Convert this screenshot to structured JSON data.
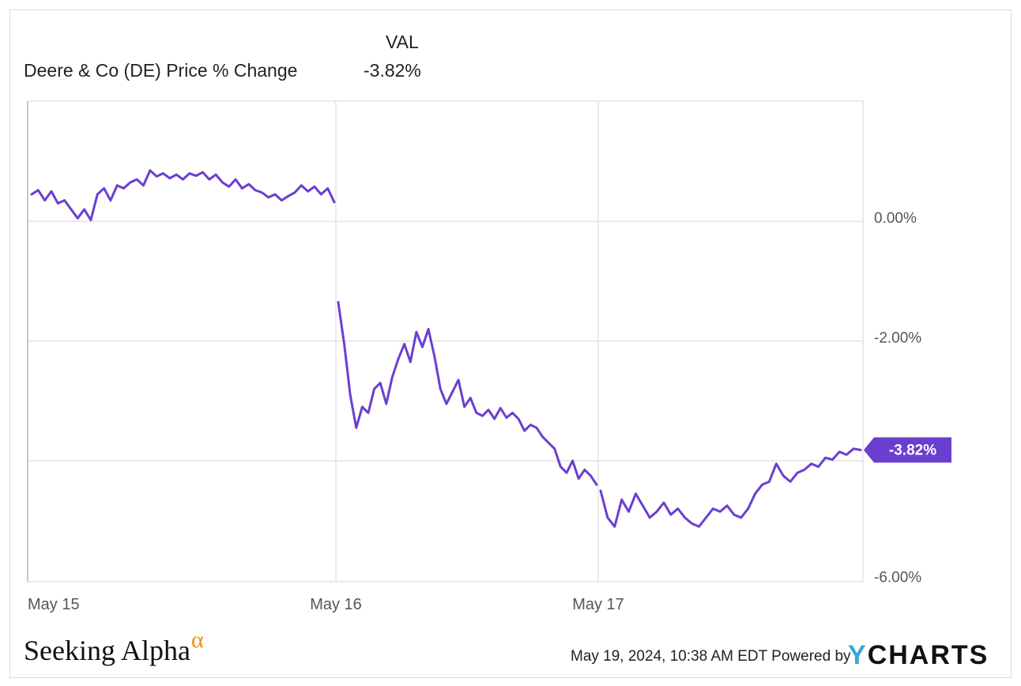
{
  "legend": {
    "header": "VAL",
    "series_name": "Deere & Co (DE) Price % Change",
    "series_value": "-3.82%"
  },
  "footer": {
    "brand": "Seeking Alpha",
    "brand_mark": "α",
    "date": "May 19, 2024, 10:38 AM EDT Powered by",
    "logo_y": "Y",
    "logo_rest": "CHARTS"
  },
  "colors": {
    "line": "#6a3fd0",
    "badge": "#6a3fd0",
    "grid": "#e3e3e3",
    "axis_text": "#555555",
    "alpha_mark": "#f39200",
    "ycharts_y": "#3aa6dd"
  },
  "chart_data": {
    "type": "line",
    "title": "",
    "xlabel": "",
    "ylabel": "",
    "y_axis_side": "right",
    "ylim": [
      -6.2,
      2.0
    ],
    "y_ticks": [
      0,
      -2,
      -4,
      -6
    ],
    "y_tick_labels": [
      "0.00%",
      "-2.00%",
      "",
      "-6.00%"
    ],
    "grid": true,
    "x_ticks": [
      "May 15",
      "May 16",
      "May 17"
    ],
    "last_value_label": "-3.82%",
    "series": [
      {
        "name": "Deere & Co (DE) Price % Change",
        "segments": [
          {
            "day": "May 15",
            "values": [
              0.45,
              0.52,
              0.35,
              0.5,
              0.3,
              0.35,
              0.2,
              0.05,
              0.2,
              0.02,
              0.45,
              0.55,
              0.35,
              0.6,
              0.55,
              0.65,
              0.7,
              0.6,
              0.85,
              0.75,
              0.8,
              0.72,
              0.78,
              0.7,
              0.8,
              0.76,
              0.82,
              0.7,
              0.78,
              0.65,
              0.58,
              0.7,
              0.55,
              0.62,
              0.52,
              0.48,
              0.4,
              0.45,
              0.35,
              0.42,
              0.48,
              0.6,
              0.5,
              0.58,
              0.45,
              0.55,
              0.32
            ]
          },
          {
            "day": "May 16",
            "values": [
              -1.35,
              -2.05,
              -2.9,
              -3.45,
              -3.1,
              -3.2,
              -2.8,
              -2.7,
              -3.05,
              -2.6,
              -2.3,
              -2.05,
              -2.35,
              -1.85,
              -2.1,
              -1.8,
              -2.25,
              -2.8,
              -3.05,
              -2.85,
              -2.65,
              -3.1,
              -2.95,
              -3.2,
              -3.25,
              -3.15,
              -3.3,
              -3.12,
              -3.28,
              -3.2,
              -3.3,
              -3.5,
              -3.4,
              -3.45,
              -3.6,
              -3.7,
              -3.8,
              -4.1,
              -4.2,
              -4.0,
              -4.3,
              -4.15,
              -4.25,
              -4.4
            ]
          },
          {
            "day": "May 17",
            "values": [
              -4.5,
              -4.95,
              -5.1,
              -4.65,
              -4.85,
              -4.55,
              -4.75,
              -4.95,
              -4.85,
              -4.7,
              -4.9,
              -4.8,
              -4.95,
              -5.05,
              -5.1,
              -4.95,
              -4.8,
              -4.85,
              -4.75,
              -4.9,
              -4.95,
              -4.8,
              -4.55,
              -4.4,
              -4.35,
              -4.05,
              -4.25,
              -4.35,
              -4.2,
              -4.15,
              -4.05,
              -4.1,
              -3.95,
              -3.98,
              -3.85,
              -3.9,
              -3.8,
              -3.82
            ]
          }
        ]
      }
    ]
  }
}
